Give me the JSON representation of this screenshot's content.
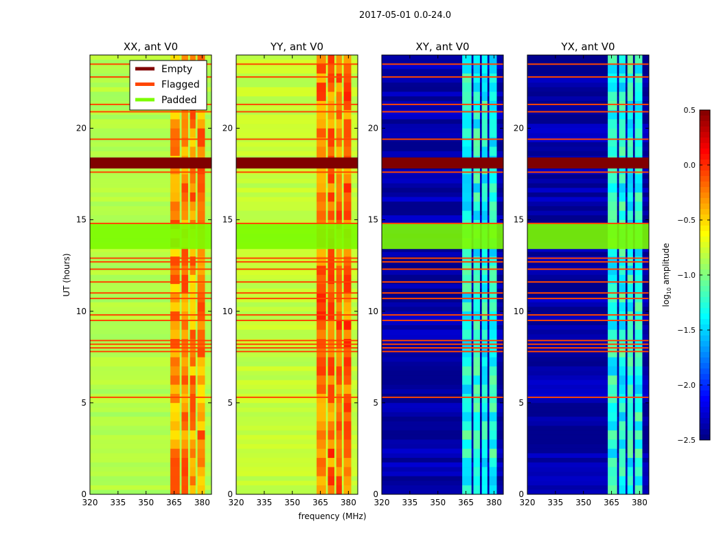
{
  "chart_data": {
    "type": "heatmap",
    "title": "2017-05-01 0.0-24.0",
    "xlabel": "frequency (MHz)",
    "ylabel": "UT (hours)",
    "xlim": [
      320,
      385
    ],
    "ylim": [
      0,
      24
    ],
    "xticks": [
      320,
      335,
      350,
      365,
      380
    ],
    "yticks": [
      0,
      5,
      10,
      15,
      20
    ],
    "panels": [
      {
        "title": "XX, ant V0",
        "base_value": -0.85,
        "rfi_value": -0.3
      },
      {
        "title": "YY, ant V0",
        "base_value": -0.8,
        "rfi_value": -0.2
      },
      {
        "title": "XY, ant V0",
        "base_value": -2.4,
        "rfi_value": -1.3
      },
      {
        "title": "YX, ant V0",
        "base_value": -2.4,
        "rfi_value": -1.3
      }
    ],
    "rfi_channels_mhz": [
      [
        363,
        368
      ],
      [
        369,
        372.5
      ],
      [
        373.5,
        376.5
      ],
      [
        377.5,
        381.5
      ]
    ],
    "padded_ut_ranges": [
      [
        13.4,
        14.8
      ]
    ],
    "empty_ut_ranges": [
      [
        17.8,
        18.4
      ]
    ],
    "flagged_ut": [
      23.5,
      22.8,
      21.3,
      20.9,
      19.4,
      17.6,
      14.8,
      12.9,
      12.7,
      12.3,
      11.6,
      11.0,
      10.7,
      9.8,
      9.5,
      8.4,
      8.2,
      8.0,
      7.8,
      5.3
    ],
    "legend": {
      "position": "top-right of first panel",
      "entries": [
        {
          "label": "Empty",
          "color": "#800000"
        },
        {
          "label": "Flagged",
          "color": "#ff4500"
        },
        {
          "label": "Padded",
          "color": "#7cfc00"
        }
      ]
    },
    "colorbar": {
      "label": "log10 amplitude",
      "label_main": "log",
      "label_sub": "10",
      "label_rest": " amplitude",
      "range": [
        -2.5,
        0.5
      ],
      "ticks": [
        "0.5",
        "0.0",
        "−0.5",
        "−1.0",
        "−1.5",
        "−2.0",
        "−2.5"
      ],
      "tick_values": [
        0.5,
        0,
        -0.5,
        -1,
        -1.5,
        -2,
        -2.5
      ]
    }
  }
}
